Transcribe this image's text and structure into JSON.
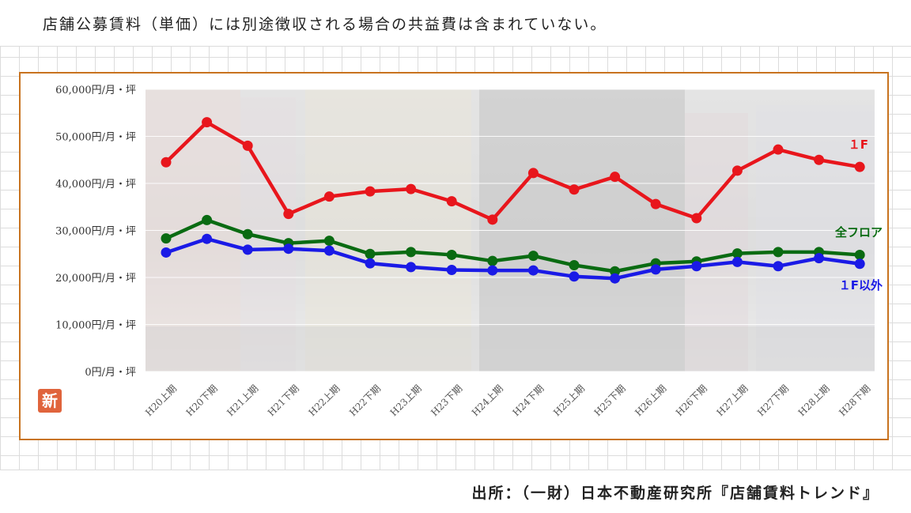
{
  "header": {
    "note": "店舗公募賃料（単価）には別途徴収される場合の共益費は含まれていない。"
  },
  "footer": {
    "source": "出所：（一財）日本不動産研究所『店舗賃料トレンド』"
  },
  "badge": {
    "label": "新"
  },
  "colors": {
    "frame": "#c8731f",
    "first_floor": "#e8161c",
    "all_floors": "#0a6b12",
    "other_floors": "#1a1ae6"
  },
  "chart_data": {
    "type": "line",
    "title": "",
    "xlabel": "",
    "ylabel": "",
    "ylim": [
      0,
      60000
    ],
    "y_ticks": [
      0,
      10000,
      20000,
      30000,
      40000,
      50000,
      60000
    ],
    "y_tick_labels": [
      "0円/月・坪",
      "10,000円/月・坪",
      "20,000円/月・坪",
      "30,000円/月・坪",
      "40,000円/月・坪",
      "50,000円/月・坪",
      "60,000円/月・坪"
    ],
    "categories": [
      "H20上期",
      "H20下期",
      "H21上期",
      "H21下期",
      "H22上期",
      "H22下期",
      "H23上期",
      "H23下期",
      "H24上期",
      "H24下期",
      "H25上期",
      "H25下期",
      "H26上期",
      "H26下期",
      "H27上期",
      "H27下期",
      "H28上期",
      "H28下期"
    ],
    "grid": true,
    "legend": "inline-right",
    "series": [
      {
        "name": "１F",
        "color": "#e8161c",
        "values": [
          44500,
          53000,
          48000,
          33500,
          37200,
          38300,
          38800,
          36200,
          32300,
          42200,
          38700,
          41400,
          35600,
          32600,
          42700,
          47200,
          45000,
          43500
        ]
      },
      {
        "name": "全フロア",
        "color": "#0a6b12",
        "values": [
          28300,
          32200,
          29200,
          27300,
          27800,
          25000,
          25400,
          24800,
          23500,
          24600,
          22600,
          21300,
          23000,
          23400,
          25100,
          25400,
          25400,
          24800
        ]
      },
      {
        "name": "１F以外",
        "color": "#1a1ae6",
        "values": [
          25300,
          28200,
          25900,
          26100,
          25700,
          23000,
          22200,
          21600,
          21500,
          21500,
          20200,
          19800,
          21700,
          22400,
          23300,
          22400,
          24100,
          22900
        ]
      }
    ]
  }
}
